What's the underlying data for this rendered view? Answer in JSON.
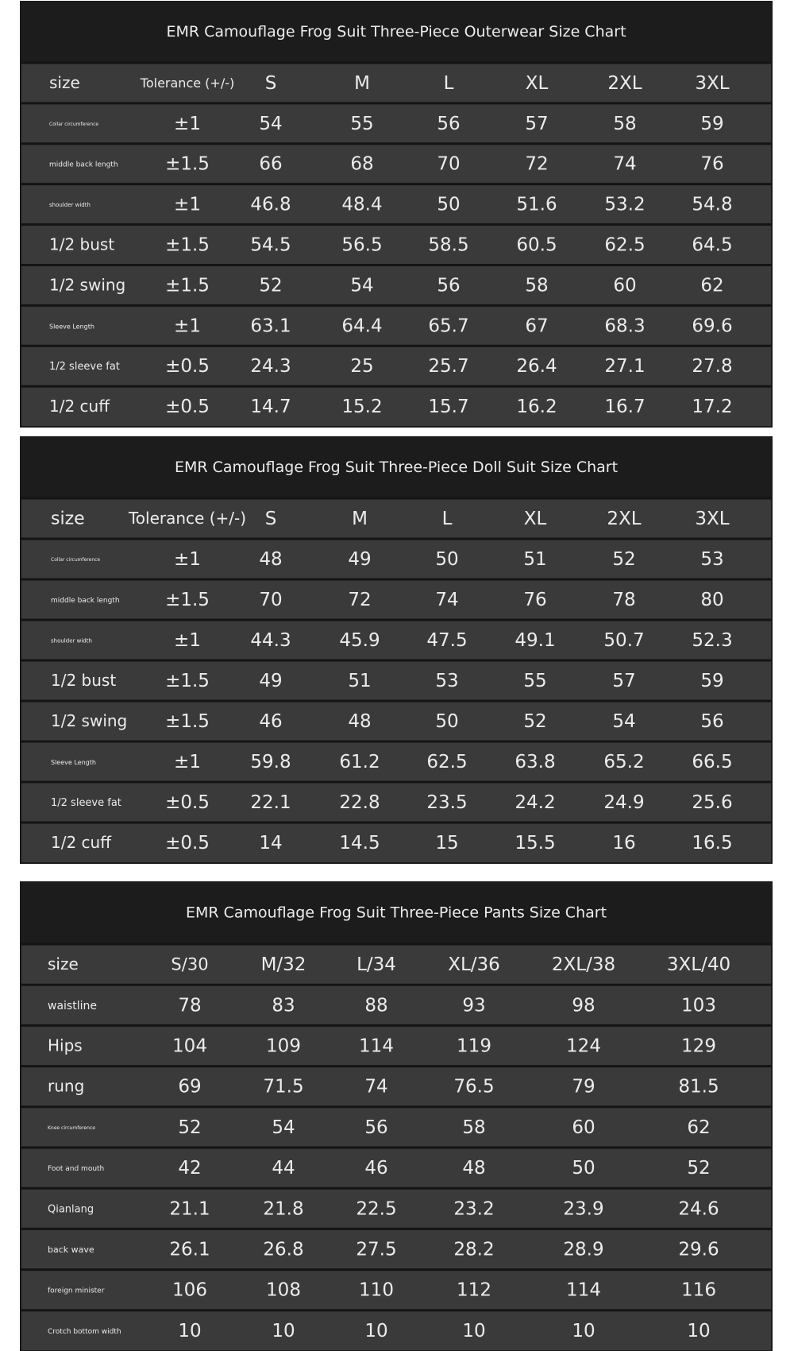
{
  "tables": [
    {
      "title": "EMR Camouflage Frog Suit Three-Piece Outerwear Size Chart",
      "header": [
        "size",
        "Tolerance (+/-)",
        "S",
        "M",
        "L",
        "XL",
        "2XL",
        "3XL"
      ],
      "rows": [
        [
          "Collar circumference",
          "±1",
          "54",
          "55",
          "56",
          "57",
          "58",
          "59"
        ],
        [
          "middle back length",
          "±1.5",
          "66",
          "68",
          "70",
          "72",
          "74",
          "76"
        ],
        [
          "shoulder width",
          "±1",
          "46.8",
          "48.4",
          "50",
          "51.6",
          "53.2",
          "54.8"
        ],
        [
          "1/2 bust",
          "±1.5",
          "54.5",
          "56.5",
          "58.5",
          "60.5",
          "62.5",
          "64.5"
        ],
        [
          "1/2 swing",
          "±1.5",
          "52",
          "54",
          "56",
          "58",
          "60",
          "62"
        ],
        [
          "Sleeve Length",
          "±1",
          "63.1",
          "64.4",
          "65.7",
          "67",
          "68.3",
          "69.6"
        ],
        [
          "1/2 sleeve fat",
          "±0.5",
          "24.3",
          "25",
          "25.7",
          "26.4",
          "27.1",
          "27.8"
        ],
        [
          "1/2 cuff",
          "±0.5",
          "14.7",
          "15.2",
          "15.7",
          "16.2",
          "16.7",
          "17.2"
        ]
      ]
    },
    {
      "title": "EMR Camouflage Frog Suit Three-Piece Doll Suit Size Chart",
      "header": [
        "size",
        "Tolerance (+/-)",
        "S",
        "M",
        "L",
        "XL",
        "2XL",
        "3XL"
      ],
      "rows": [
        [
          "Collar circumference",
          "±1",
          "48",
          "49",
          "50",
          "51",
          "52",
          "53"
        ],
        [
          "middle back length",
          "±1.5",
          "70",
          "72",
          "74",
          "76",
          "78",
          "80"
        ],
        [
          "shoulder width",
          "±1",
          "44.3",
          "45.9",
          "47.5",
          "49.1",
          "50.7",
          "52.3"
        ],
        [
          "1/2 bust",
          "±1.5",
          "49",
          "51",
          "53",
          "55",
          "57",
          "59"
        ],
        [
          "1/2 swing",
          "±1.5",
          "46",
          "48",
          "50",
          "52",
          "54",
          "56"
        ],
        [
          "Sleeve Length",
          "±1",
          "59.8",
          "61.2",
          "62.5",
          "63.8",
          "65.2",
          "66.5"
        ],
        [
          "1/2 sleeve fat",
          "±0.5",
          "22.1",
          "22.8",
          "23.5",
          "24.2",
          "24.9",
          "25.6"
        ],
        [
          "1/2 cuff",
          "±0.5",
          "14",
          "14.5",
          "15",
          "15.5",
          "16",
          "16.5"
        ]
      ]
    },
    {
      "title": "EMR Camouflage Frog Suit Three-Piece Pants Size Chart",
      "header": [
        "size",
        "S/30",
        "M/32",
        "L/34",
        "XL/36",
        "2XL/38",
        "3XL/40"
      ],
      "rows": [
        [
          "waistline",
          "78",
          "83",
          "88",
          "93",
          "98",
          "103"
        ],
        [
          "Hips",
          "104",
          "109",
          "114",
          "119",
          "124",
          "129"
        ],
        [
          "rung",
          "69",
          "71.5",
          "74",
          "76.5",
          "79",
          "81.5"
        ],
        [
          "Knee circumference",
          "52",
          "54",
          "56",
          "58",
          "60",
          "62"
        ],
        [
          "Foot and mouth",
          "42",
          "44",
          "46",
          "48",
          "50",
          "52"
        ],
        [
          "Qianlang",
          "21.1",
          "21.8",
          "22.5",
          "23.2",
          "23.9",
          "24.6"
        ],
        [
          "back wave",
          "26.1",
          "26.8",
          "27.5",
          "28.2",
          "28.9",
          "29.6"
        ],
        [
          "foreign minister",
          "106",
          "108",
          "110",
          "112",
          "114",
          "116"
        ],
        [
          "Crotch bottom width",
          "10",
          "10",
          "10",
          "10",
          "10",
          "10"
        ]
      ]
    }
  ]
}
